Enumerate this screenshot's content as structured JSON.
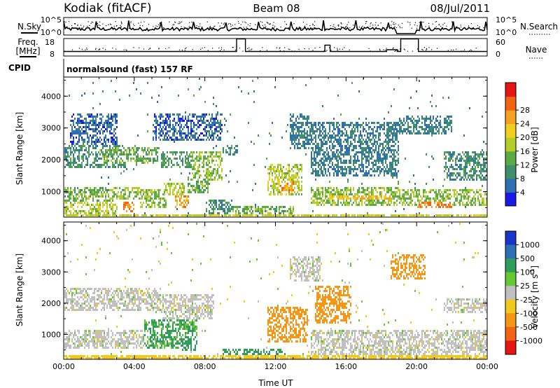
{
  "header": {
    "station": "Kodiak (fitACF)",
    "beam": "Beam 08",
    "date": "08/Jul/2011"
  },
  "chart_data": [
    {
      "type": "line",
      "panel": "noise",
      "left_label": "N.Sky",
      "right_label": "N.Search",
      "left_ticks": [
        "10^5",
        "10^0"
      ],
      "right_ticks": [
        "10^5",
        "10^0"
      ]
    },
    {
      "type": "line",
      "panel": "frequency",
      "left_label_lines": [
        "Freq.",
        "[MHz]"
      ],
      "right_label": "Nave",
      "left_ticks": [
        "18",
        "8"
      ],
      "right_ticks": [
        "60",
        "0"
      ],
      "ylim_left": [
        8,
        18
      ],
      "ylim_right": [
        0,
        60
      ]
    },
    {
      "type": "table",
      "panel": "cpid",
      "label": "CPID",
      "text": "normalsound (fast) 157 RF"
    },
    {
      "type": "heatmap",
      "panel": "power",
      "ylabel": "Slant Range [km]",
      "yticks": [
        "1000",
        "2000",
        "3000",
        "4000"
      ],
      "ylim": [
        200,
        4600
      ],
      "colorbar": {
        "label": "Power [dB]",
        "ticks": [
          "4",
          "8",
          "12",
          "16",
          "20",
          "24",
          "28"
        ],
        "colors": [
          "#1a1ae6",
          "#2e6fb0",
          "#3f8f6a",
          "#5aaa46",
          "#b4cd2a",
          "#f0d01e",
          "#f5a020",
          "#f06414",
          "#e61414"
        ]
      },
      "regions": [
        {
          "t": [
            0.0,
            3.5
          ],
          "r": [
            1800,
            2500
          ],
          "v": 10
        },
        {
          "t": [
            2.0,
            5.3
          ],
          "r": [
            1900,
            2400
          ],
          "v": 14
        },
        {
          "t": [
            5.5,
            7.8
          ],
          "r": [
            1800,
            2300
          ],
          "v": 12
        },
        {
          "t": [
            7.2,
            9.0
          ],
          "r": [
            1400,
            2300
          ],
          "v": 16
        },
        {
          "t": [
            9.0,
            9.8
          ],
          "r": [
            2200,
            2500
          ],
          "v": 10
        },
        {
          "t": [
            0.0,
            2.8
          ],
          "r": [
            700,
            1200
          ],
          "v": 14
        },
        {
          "t": [
            2.5,
            4.3
          ],
          "r": [
            800,
            1200
          ],
          "v": 16
        },
        {
          "t": [
            0.0,
            3.0
          ],
          "r": [
            300,
            700
          ],
          "v": 18
        },
        {
          "t": [
            3.3,
            4.0
          ],
          "r": [
            400,
            700
          ],
          "v": 28
        },
        {
          "t": [
            4.3,
            5.8
          ],
          "r": [
            500,
            1100
          ],
          "v": 16
        },
        {
          "t": [
            5.6,
            6.8
          ],
          "r": [
            900,
            1300
          ],
          "v": 18
        },
        {
          "t": [
            6.3,
            7.1
          ],
          "r": [
            500,
            900
          ],
          "v": 26
        },
        {
          "t": [
            7.0,
            8.2
          ],
          "r": [
            1000,
            1500
          ],
          "v": 14
        },
        {
          "t": [
            8.0,
            9.5
          ],
          "r": [
            300,
            800
          ],
          "v": 10
        },
        {
          "t": [
            9.5,
            13.0
          ],
          "r": [
            250,
            600
          ],
          "v": 14
        },
        {
          "t": [
            11.5,
            13.5
          ],
          "r": [
            900,
            1900
          ],
          "v": 18
        },
        {
          "t": [
            12.2,
            13.0
          ],
          "r": [
            1000,
            1400
          ],
          "v": 26
        },
        {
          "t": [
            12.8,
            14.0
          ],
          "r": [
            2400,
            3500
          ],
          "v": 8
        },
        {
          "t": [
            14.0,
            19.2
          ],
          "r": [
            600,
            1200
          ],
          "v": 16
        },
        {
          "t": [
            15.0,
            18.5
          ],
          "r": [
            800,
            900
          ],
          "v": 24
        },
        {
          "t": [
            19.0,
            24.0
          ],
          "r": [
            600,
            1100
          ],
          "v": 16
        },
        {
          "t": [
            20.0,
            22.0
          ],
          "r": [
            500,
            700
          ],
          "v": 28
        },
        {
          "t": [
            14.0,
            19.0
          ],
          "r": [
            1500,
            3200
          ],
          "v": 8
        },
        {
          "t": [
            21.5,
            24.0
          ],
          "r": [
            1400,
            2300
          ],
          "v": 10
        },
        {
          "t": [
            19.0,
            22.0
          ],
          "r": [
            2800,
            3400
          ],
          "v": 8
        },
        {
          "t": [
            0.3,
            3.0
          ],
          "r": [
            2500,
            3500
          ],
          "v": 6
        },
        {
          "t": [
            5.0,
            9.0
          ],
          "r": [
            2600,
            3500
          ],
          "v": 6
        },
        {
          "t": [
            0.0,
            24.0
          ],
          "r": [
            200,
            350
          ],
          "v": 20
        }
      ]
    },
    {
      "type": "heatmap",
      "panel": "velocity",
      "ylabel": "Slant Range [km]",
      "yticks": [
        "1000",
        "2000",
        "3000",
        "4000"
      ],
      "ylim": [
        200,
        4600
      ],
      "xlabel": "Time UT",
      "xticks": [
        "00:00",
        "04:00",
        "08:00",
        "12:00",
        "16:00",
        "20:00",
        "00:00"
      ],
      "xlim": [
        0,
        24
      ],
      "colorbar": {
        "label": "Velocity [m s",
        "label_sup": "-1",
        "label_end": "]",
        "ticks": [
          "1000",
          "500",
          "100",
          "25",
          "-25",
          "-100",
          "-500",
          "-1000"
        ],
        "colors": [
          "#1a36c8",
          "#2e6eb4",
          "#2e9d5a",
          "#64c832",
          "#c0c0c0",
          "#f0c81e",
          "#f59614",
          "#f06414",
          "#e61414"
        ]
      },
      "regions": [
        {
          "t": [
            0.0,
            5.5
          ],
          "r": [
            1800,
            2500
          ],
          "v": 0
        },
        {
          "t": [
            5.5,
            8.5
          ],
          "r": [
            1500,
            2300
          ],
          "v": 0
        },
        {
          "t": [
            0.0,
            4.5
          ],
          "r": [
            600,
            1200
          ],
          "v": 0
        },
        {
          "t": [
            4.5,
            7.5
          ],
          "r": [
            600,
            1500
          ],
          "v": 110
        },
        {
          "t": [
            6.5,
            7.5
          ],
          "r": [
            500,
            900
          ],
          "v": 180
        },
        {
          "t": [
            9.0,
            12.5
          ],
          "r": [
            250,
            600
          ],
          "v": 150
        },
        {
          "t": [
            11.5,
            13.8
          ],
          "r": [
            800,
            1900
          ],
          "v": -300
        },
        {
          "t": [
            14.2,
            16.3
          ],
          "r": [
            1400,
            2600
          ],
          "v": -250
        },
        {
          "t": [
            14.0,
            24.0
          ],
          "r": [
            300,
            1200
          ],
          "v": 0
        },
        {
          "t": [
            18.5,
            20.5
          ],
          "r": [
            2800,
            3600
          ],
          "v": -250
        },
        {
          "t": [
            12.8,
            14.5
          ],
          "r": [
            2700,
            3500
          ],
          "v": 0
        },
        {
          "t": [
            21.5,
            24.0
          ],
          "r": [
            1700,
            2200
          ],
          "v": 0
        },
        {
          "t": [
            0.0,
            24.0
          ],
          "r": [
            200,
            350
          ],
          "v": -60
        }
      ]
    }
  ]
}
